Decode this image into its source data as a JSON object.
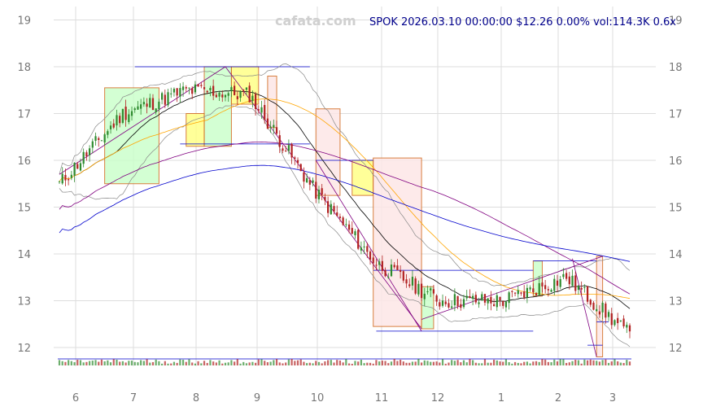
{
  "watermark": "cafata.com",
  "header": "SPOK 2026.03.10 00:00:00 $12.26 0.00% vol:114.3K 0.6x",
  "chart_data": {
    "type": "candlestick",
    "symbol": "SPOK",
    "x_tick_labels": [
      "6",
      "7",
      "8",
      "9",
      "10",
      "11",
      "12",
      "1",
      "2",
      "3"
    ],
    "y_tick_labels": [
      "12",
      "13",
      "14",
      "15",
      "16",
      "17",
      "18",
      "19"
    ],
    "ylim": [
      11.6,
      19.3
    ],
    "grid": true,
    "last_close": 12.26,
    "colors": {
      "up": "#2e8b2e",
      "down": "#b22222",
      "ma_short": "#000000",
      "ma_mid": "#ffa500",
      "ma_long": "#800080",
      "ma_longest": "#0000cd",
      "bands": "#888888",
      "header": "#00008b"
    },
    "close_points_monthly": [
      {
        "month": "6",
        "close": 15.5
      },
      {
        "month": "7",
        "close": 17.0
      },
      {
        "month": "8",
        "close": 17.5
      },
      {
        "month": "9",
        "close": 17.4
      },
      {
        "month": "10",
        "close": 15.4
      },
      {
        "month": "11",
        "close": 13.8
      },
      {
        "month": "12",
        "close": 13.0
      },
      {
        "month": "1",
        "close": 13.0
      },
      {
        "month": "2",
        "close": 13.5
      },
      {
        "month": "3",
        "close": 12.26
      }
    ]
  }
}
